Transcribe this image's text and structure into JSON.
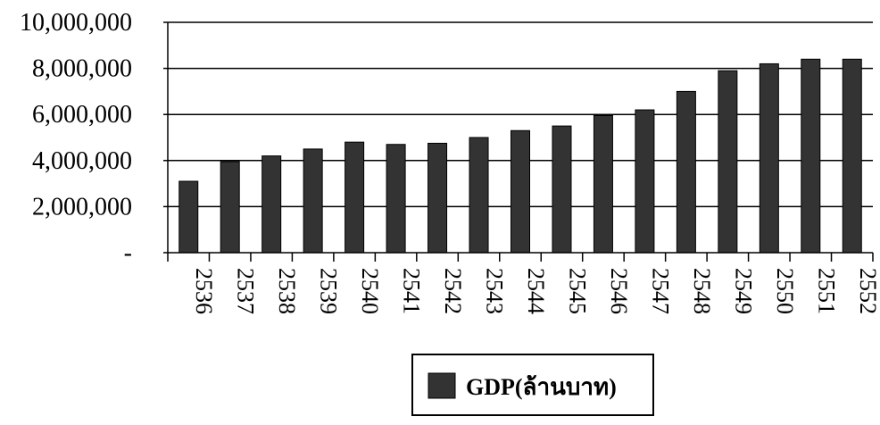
{
  "chart_data": {
    "type": "bar",
    "categories": [
      "2536",
      "2537",
      "2538",
      "2539",
      "2540",
      "2541",
      "2542",
      "2543",
      "2544",
      "2545",
      "2546",
      "2547",
      "2548",
      "2549",
      "2550",
      "2551",
      "2552"
    ],
    "series": [
      {
        "name": "GDP(ล้านบาท)",
        "values": [
          3100000,
          3950000,
          4200000,
          4500000,
          4800000,
          4700000,
          4750000,
          5000000,
          5300000,
          5500000,
          5950000,
          6200000,
          7000000,
          7900000,
          8200000,
          8400000,
          8400000
        ]
      }
    ],
    "ylim": [
      0,
      10000000
    ],
    "yticks": [
      0,
      2000000,
      4000000,
      6000000,
      8000000,
      10000000
    ],
    "ytick_labels": [
      "-",
      "2,000,000",
      "4,000,000",
      "6,000,000",
      "8,000,000",
      "10,000,000"
    ],
    "grid": true,
    "legend_position": "bottom",
    "bar_color": "#333333"
  }
}
